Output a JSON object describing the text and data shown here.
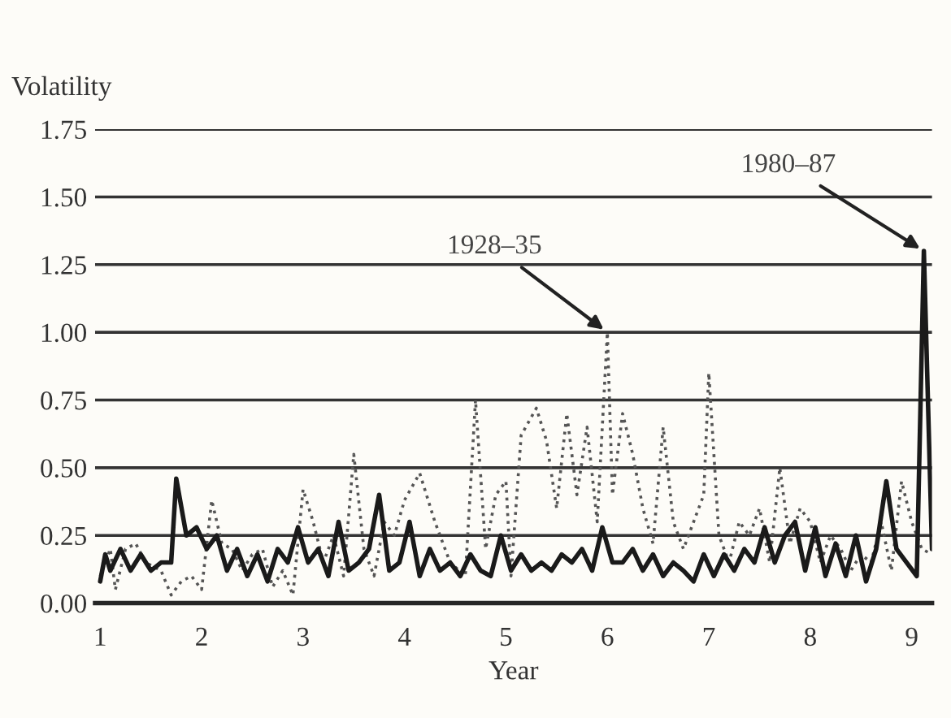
{
  "chart_data": {
    "type": "line",
    "ylabel": "Volatility",
    "xlabel": "Year",
    "xlim": [
      0.95,
      9.2
    ],
    "xticks": [
      1,
      2,
      3,
      4,
      5,
      6,
      7,
      8,
      9
    ],
    "ylim": [
      0,
      1.75
    ],
    "yticks": [
      {
        "value": 0,
        "label": "0.00"
      },
      {
        "value": 0.25,
        "label": "0.25"
      },
      {
        "value": 0.5,
        "label": "0.50"
      },
      {
        "value": 0.75,
        "label": "0.75"
      },
      {
        "value": 1.0,
        "label": "1.00"
      },
      {
        "value": 1.25,
        "label": "1.25"
      },
      {
        "value": 1.5,
        "label": "1.50"
      },
      {
        "value": 1.75,
        "label": "1.75"
      }
    ],
    "grid": "y",
    "legend": false,
    "marker": "none",
    "series": [
      {
        "color": "#555555",
        "line_style": "dotted",
        "x": [
          1.0,
          1.1,
          1.15,
          1.25,
          1.35,
          1.45,
          1.6,
          1.7,
          1.8,
          1.9,
          2.0,
          2.1,
          2.2,
          2.3,
          2.4,
          2.5,
          2.6,
          2.7,
          2.8,
          2.9,
          3.0,
          3.1,
          3.2,
          3.3,
          3.4,
          3.5,
          3.6,
          3.7,
          3.8,
          3.9,
          4.0,
          4.15,
          4.3,
          4.45,
          4.6,
          4.7,
          4.8,
          4.9,
          5.0,
          5.05,
          5.15,
          5.3,
          5.4,
          5.5,
          5.6,
          5.7,
          5.8,
          5.9,
          6.0,
          6.05,
          6.15,
          6.25,
          6.35,
          6.45,
          6.55,
          6.65,
          6.75,
          6.85,
          6.95,
          7.0,
          7.1,
          7.2,
          7.3,
          7.4,
          7.5,
          7.6,
          7.7,
          7.8,
          7.9,
          8.0,
          8.1,
          8.2,
          8.3,
          8.4,
          8.5,
          8.6,
          8.7,
          8.8,
          8.9,
          9.0,
          9.1,
          9.2
        ],
        "values": [
          0.1,
          0.2,
          0.05,
          0.2,
          0.22,
          0.15,
          0.12,
          0.03,
          0.08,
          0.1,
          0.05,
          0.38,
          0.22,
          0.2,
          0.12,
          0.18,
          0.2,
          0.06,
          0.12,
          0.03,
          0.42,
          0.3,
          0.15,
          0.25,
          0.1,
          0.55,
          0.2,
          0.1,
          0.3,
          0.25,
          0.38,
          0.48,
          0.3,
          0.15,
          0.1,
          0.75,
          0.2,
          0.4,
          0.45,
          0.1,
          0.62,
          0.72,
          0.6,
          0.35,
          0.7,
          0.4,
          0.65,
          0.3,
          1.0,
          0.4,
          0.7,
          0.55,
          0.35,
          0.22,
          0.65,
          0.3,
          0.2,
          0.3,
          0.4,
          0.85,
          0.25,
          0.15,
          0.3,
          0.25,
          0.35,
          0.15,
          0.5,
          0.22,
          0.35,
          0.3,
          0.15,
          0.25,
          0.2,
          0.12,
          0.18,
          0.15,
          0.3,
          0.12,
          0.45,
          0.3,
          0.2,
          0.18
        ]
      },
      {
        "color": "#1a1a1a",
        "line_style": "solid",
        "x": [
          1.0,
          1.05,
          1.1,
          1.2,
          1.3,
          1.4,
          1.5,
          1.6,
          1.7,
          1.75,
          1.85,
          1.95,
          2.05,
          2.15,
          2.25,
          2.35,
          2.45,
          2.55,
          2.65,
          2.75,
          2.85,
          2.95,
          3.05,
          3.15,
          3.25,
          3.35,
          3.45,
          3.55,
          3.65,
          3.75,
          3.85,
          3.95,
          4.05,
          4.15,
          4.25,
          4.35,
          4.45,
          4.55,
          4.65,
          4.75,
          4.85,
          4.95,
          5.05,
          5.15,
          5.25,
          5.35,
          5.45,
          5.55,
          5.65,
          5.75,
          5.85,
          5.95,
          6.05,
          6.15,
          6.25,
          6.35,
          6.45,
          6.55,
          6.65,
          6.75,
          6.85,
          6.95,
          7.05,
          7.15,
          7.25,
          7.35,
          7.45,
          7.55,
          7.65,
          7.75,
          7.85,
          7.95,
          8.05,
          8.15,
          8.25,
          8.35,
          8.45,
          8.55,
          8.65,
          8.75,
          8.85,
          8.95,
          9.05,
          9.12,
          9.2
        ],
        "values": [
          0.08,
          0.18,
          0.12,
          0.2,
          0.12,
          0.18,
          0.12,
          0.15,
          0.15,
          0.46,
          0.25,
          0.28,
          0.2,
          0.25,
          0.12,
          0.2,
          0.1,
          0.18,
          0.08,
          0.2,
          0.15,
          0.28,
          0.15,
          0.2,
          0.1,
          0.3,
          0.12,
          0.15,
          0.2,
          0.4,
          0.12,
          0.15,
          0.3,
          0.1,
          0.2,
          0.12,
          0.15,
          0.1,
          0.18,
          0.12,
          0.1,
          0.25,
          0.12,
          0.18,
          0.12,
          0.15,
          0.12,
          0.18,
          0.15,
          0.2,
          0.12,
          0.28,
          0.15,
          0.15,
          0.2,
          0.12,
          0.18,
          0.1,
          0.15,
          0.12,
          0.08,
          0.18,
          0.1,
          0.18,
          0.12,
          0.2,
          0.15,
          0.28,
          0.15,
          0.25,
          0.3,
          0.12,
          0.28,
          0.1,
          0.22,
          0.1,
          0.25,
          0.08,
          0.2,
          0.45,
          0.2,
          0.15,
          0.1,
          1.3,
          0.2
        ]
      }
    ],
    "annotations": [
      {
        "text": "1928–35",
        "x": 6.0,
        "y": 1.0
      },
      {
        "text": "1980–87",
        "x": 9.12,
        "y": 1.3
      }
    ]
  }
}
